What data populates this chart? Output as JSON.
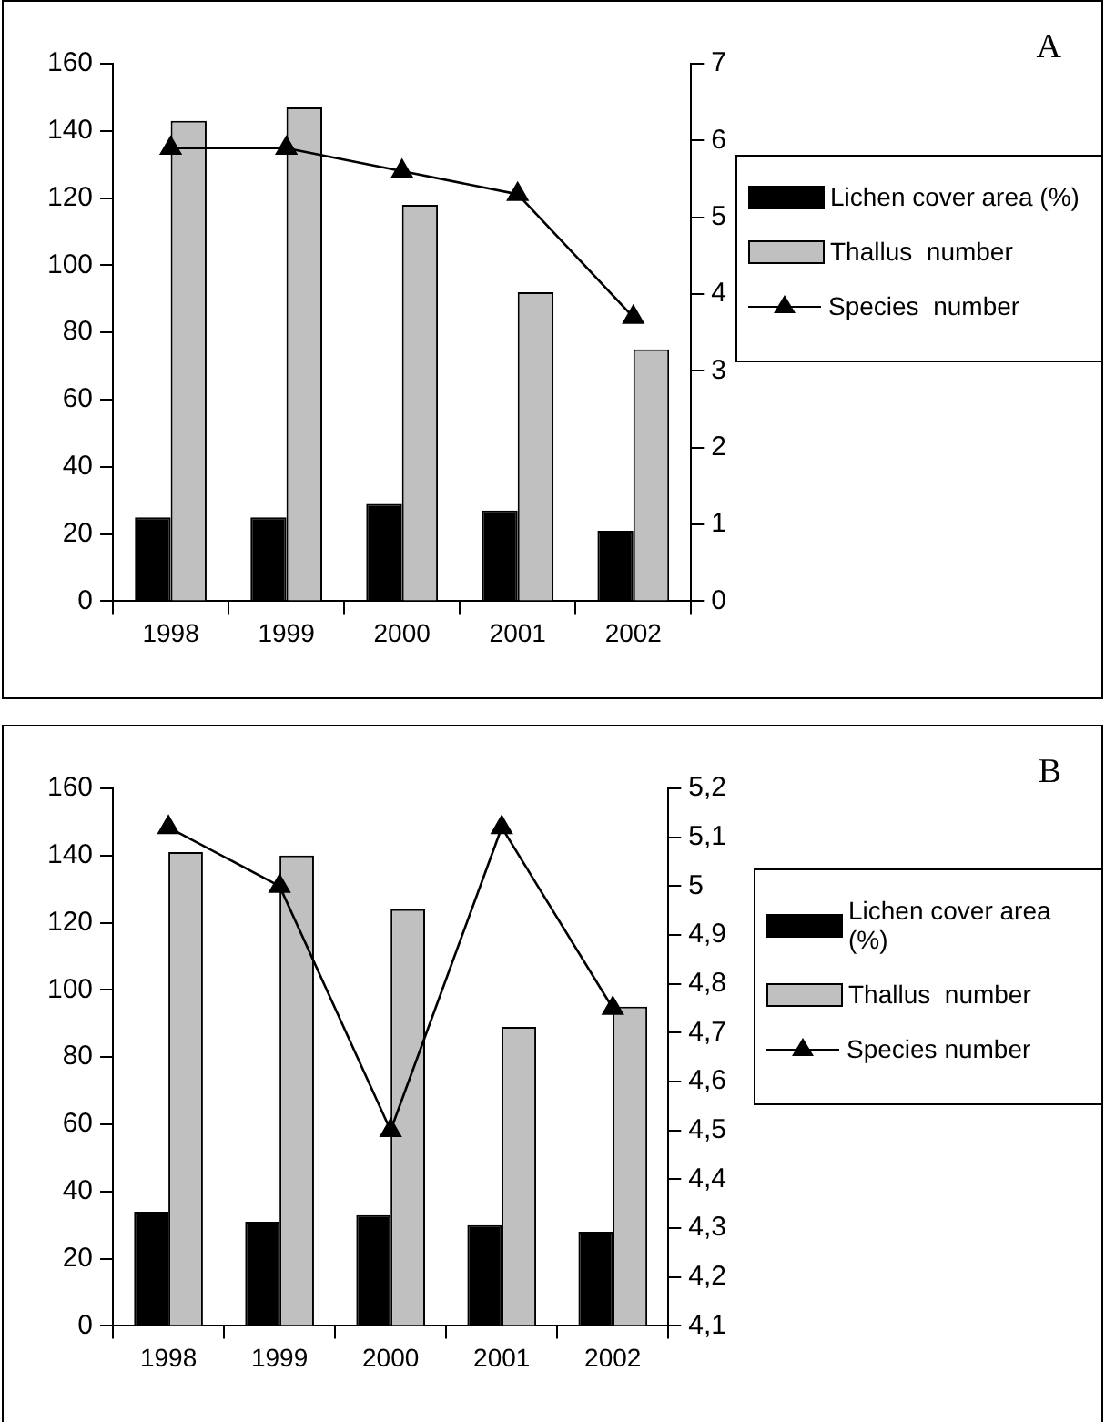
{
  "chart_data": [
    {
      "type": "bar",
      "annotations": [
        "A"
      ],
      "categories": [
        "1998",
        "1999",
        "2000",
        "2001",
        "2002"
      ],
      "series": [
        {
          "name": "Lichen cover area (%)",
          "color": "#000000",
          "values": [
            25,
            25,
            29,
            27,
            21
          ]
        },
        {
          "name": "Thallus  number",
          "color": "#c0c0c0",
          "values": [
            143,
            147,
            118,
            92,
            75
          ]
        },
        {
          "name": "Species  number",
          "type": "line",
          "axis": "y2",
          "color": "#000000",
          "values": [
            5.9,
            5.9,
            5.6,
            5.3,
            3.7
          ]
        }
      ],
      "ylim": [
        0,
        160
      ],
      "yticks": [
        0,
        20,
        40,
        60,
        80,
        100,
        120,
        140,
        160
      ],
      "y2lim": [
        0,
        7
      ],
      "y2ticks": [
        0,
        1,
        2,
        3,
        4,
        5,
        6,
        7
      ],
      "grid": false,
      "legend": "right",
      "marker": "triangle"
    },
    {
      "type": "bar",
      "annotations": [
        "B"
      ],
      "categories": [
        "1998",
        "1999",
        "2000",
        "2001",
        "2002"
      ],
      "series": [
        {
          "name": "Lichen cover area (%)",
          "color": "#000000",
          "values": [
            34,
            31,
            33,
            30,
            28
          ]
        },
        {
          "name": "Thallus  number",
          "color": "#c0c0c0",
          "values": [
            141,
            140,
            124,
            89,
            95
          ]
        },
        {
          "name": "Species number",
          "type": "line",
          "axis": "y2",
          "color": "#000000",
          "values": [
            5.12,
            5.0,
            4.5,
            5.12,
            4.75
          ]
        }
      ],
      "ylim": [
        0,
        160
      ],
      "yticks": [
        0,
        20,
        40,
        60,
        80,
        100,
        120,
        140,
        160
      ],
      "y2lim": [
        4.1,
        5.2
      ],
      "y2ticks": [
        {
          "value": 4.1,
          "label": "4,1"
        },
        {
          "value": 4.2,
          "label": "4,2"
        },
        {
          "value": 4.3,
          "label": "4,3"
        },
        {
          "value": 4.4,
          "label": "4,4"
        },
        {
          "value": 4.5,
          "label": "4,5"
        },
        {
          "value": 4.6,
          "label": "4,6"
        },
        {
          "value": 4.7,
          "label": "4,7"
        },
        {
          "value": 4.8,
          "label": "4,8"
        },
        {
          "value": 4.9,
          "label": "4,9"
        },
        {
          "value": 5.0,
          "label": "5"
        },
        {
          "value": 5.1,
          "label": "5,1"
        },
        {
          "value": 5.2,
          "label": "5,2"
        }
      ],
      "grid": false,
      "legend": "right",
      "marker": "triangle"
    }
  ]
}
